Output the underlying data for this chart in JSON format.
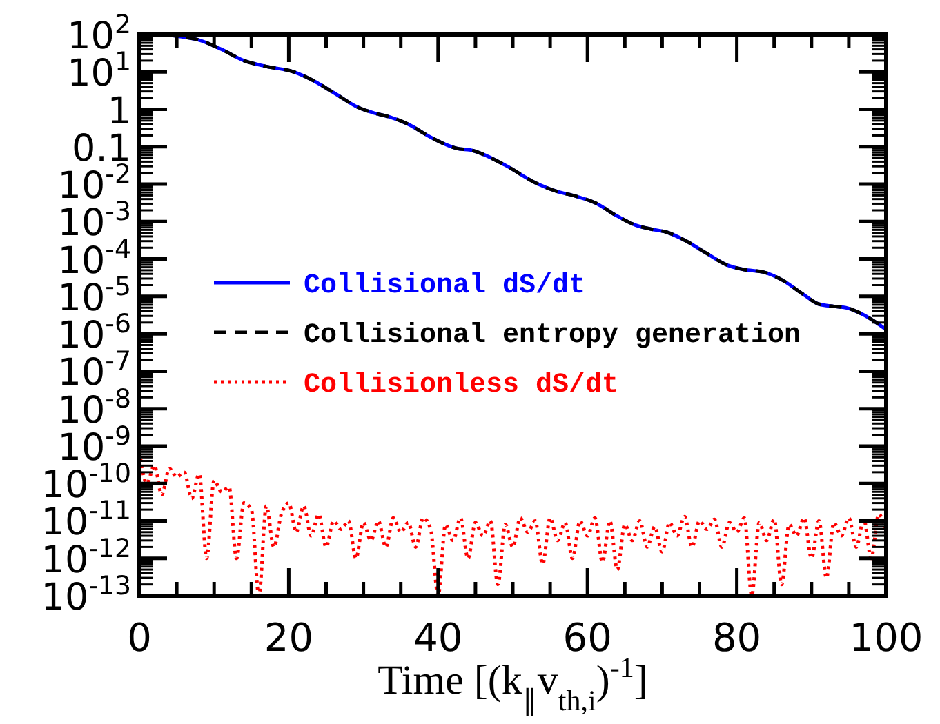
{
  "chart_data": {
    "type": "line",
    "xlabel": "Time [(k$_{∥}$v$_{th,i}$)$^{-1}$]",
    "xlim": [
      0,
      100
    ],
    "xticks": [
      0,
      {
        "value": 5,
        "label": null
      },
      {
        "value": 10,
        "label": null
      },
      {
        "value": 15,
        "label": null
      },
      20,
      {
        "value": 25,
        "label": null
      },
      {
        "value": 30,
        "label": null
      },
      {
        "value": 35,
        "label": null
      },
      40,
      {
        "value": 45,
        "label": null
      },
      {
        "value": 50,
        "label": null
      },
      {
        "value": 55,
        "label": null
      },
      60,
      {
        "value": 65,
        "label": null
      },
      {
        "value": 70,
        "label": null
      },
      {
        "value": 75,
        "label": null
      },
      80,
      {
        "value": 85,
        "label": null
      },
      {
        "value": 90,
        "label": null
      },
      {
        "value": 95,
        "label": null
      },
      100
    ],
    "ylim": [
      1e-13,
      100
    ],
    "yticks": [
      {
        "value": 100,
        "label": "10$^{2}$"
      },
      {
        "value": 10,
        "label": "10$^{1}$"
      },
      1,
      0.1,
      {
        "value": 0.01,
        "label": "10$^{-2}$"
      },
      {
        "value": 0.001,
        "label": "10$^{-3}$"
      },
      {
        "value": 0.0001,
        "label": "10$^{-4}$"
      },
      {
        "value": 1e-05,
        "label": "10$^{-5}$"
      },
      {
        "value": 1e-06,
        "label": "10$^{-6}$"
      },
      {
        "value": 1e-07,
        "label": "10$^{-7}$"
      },
      {
        "value": 1e-08,
        "label": "10$^{-8}$"
      },
      {
        "value": 1e-09,
        "label": "10$^{-9}$"
      },
      {
        "value": 1e-10,
        "label": "10$^{-10}$"
      },
      {
        "value": 1e-11,
        "label": "10$^{-11}$"
      },
      {
        "value": 1e-12,
        "label": "10$^{-12}$"
      },
      {
        "value": 1e-13,
        "label": "10$^{-13}$"
      }
    ],
    "log": "y",
    "grid": false,
    "legend": "left",
    "series": [
      {
        "name": "Collisional dS/dt",
        "color": "#0000ff",
        "line_style": "solid",
        "x": [
          3.5,
          6,
          8,
          11,
          14,
          17,
          20.7,
          23,
          26,
          29.4,
          31.5,
          33.6,
          36,
          39,
          42.9,
          44.2,
          46,
          49,
          53.4,
          56,
          58.4,
          61,
          64,
          66.4,
          68.5,
          70.6,
          73,
          76,
          78.7,
          81,
          83.5,
          86,
          89,
          90.9,
          93,
          94.6,
          97,
          100
        ],
        "values": [
          100,
          85,
          71,
          40,
          20,
          14,
          10,
          6.3,
          2.8,
          1.1,
          0.79,
          0.62,
          0.4,
          0.18,
          0.087,
          0.083,
          0.063,
          0.032,
          0.01,
          0.0063,
          0.0048,
          0.0032,
          0.0014,
          0.00081,
          0.00063,
          0.00052,
          0.00032,
          0.00014,
          6.9e-05,
          5.2e-05,
          4.5e-05,
          2.8e-05,
          1.1e-05,
          6.3e-06,
          5.4e-06,
          5e-06,
          3.2e-06,
          1.3e-06
        ]
      },
      {
        "name": "Collisional entropy generation",
        "color": "#000000",
        "line_style": "dashed",
        "x": [
          3.5,
          6,
          8,
          11,
          14,
          17,
          20.7,
          23,
          26,
          29.4,
          31.5,
          33.6,
          36,
          39,
          42.9,
          44.2,
          46,
          49,
          53.4,
          56,
          58.4,
          61,
          64,
          66.4,
          68.5,
          70.6,
          73,
          76,
          78.7,
          81,
          83.5,
          86,
          89,
          90.9,
          93,
          94.6,
          97,
          100
        ],
        "values": [
          100,
          85,
          71,
          40,
          20,
          14,
          10,
          6.3,
          2.8,
          1.1,
          0.79,
          0.62,
          0.4,
          0.18,
          0.087,
          0.083,
          0.063,
          0.032,
          0.01,
          0.0063,
          0.0048,
          0.0032,
          0.0014,
          0.00081,
          0.00063,
          0.00052,
          0.00032,
          0.00014,
          6.9e-05,
          5.2e-05,
          4.5e-05,
          2.8e-05,
          1.1e-05,
          6.3e-06,
          5.4e-06,
          5e-06,
          3.2e-06,
          1.3e-06
        ]
      },
      {
        "name": "Collisionless dS/dt",
        "color": "#ff0000",
        "line_style": "dotted",
        "x": [
          0,
          1,
          2,
          3,
          4,
          5,
          6,
          7,
          8,
          9,
          10,
          11,
          12,
          13,
          14,
          15,
          16,
          17,
          18,
          19,
          20,
          21,
          22,
          23,
          24,
          25,
          26,
          27,
          28,
          29,
          30,
          31,
          32,
          33,
          34,
          35,
          36,
          37,
          38,
          39,
          40,
          41,
          42,
          43,
          44,
          45,
          46,
          47,
          48,
          49,
          50,
          51,
          52,
          53,
          54,
          55,
          56,
          57,
          58,
          59,
          60,
          61,
          62,
          63,
          64,
          65,
          66,
          67,
          68,
          69,
          70,
          71,
          72,
          73,
          74,
          75,
          76,
          77,
          78,
          79,
          80,
          81,
          82,
          83,
          84,
          85,
          86,
          87,
          88,
          89,
          90,
          91,
          92,
          93,
          94,
          95,
          96,
          97,
          98,
          99,
          100
        ],
        "values": [
          7e-10,
          1e-10,
          3e-10,
          5e-11,
          2.5e-10,
          1.5e-10,
          2e-10,
          4e-11,
          1.8e-10,
          1e-12,
          1.2e-10,
          6e-11,
          8e-11,
          1e-12,
          3e-11,
          2e-11,
          1e-13,
          2.5e-11,
          2e-12,
          1.5e-11,
          3e-11,
          5e-12,
          2.5e-11,
          4e-12,
          1.5e-11,
          2e-12,
          1e-11,
          6e-12,
          1e-11,
          1e-12,
          9e-12,
          3e-12,
          1e-11,
          2e-12,
          1.2e-11,
          5e-12,
          9e-12,
          2e-12,
          1.2e-11,
          6e-12,
          1e-13,
          8e-12,
          3e-12,
          1.2e-11,
          1e-12,
          9e-12,
          4e-12,
          1e-11,
          2e-13,
          8e-12,
          2e-12,
          1.2e-11,
          5e-12,
          1e-11,
          7e-13,
          1.2e-11,
          3e-12,
          9e-12,
          1e-12,
          1e-11,
          4e-12,
          1.2e-11,
          8e-13,
          1e-11,
          5e-13,
          8e-12,
          3e-12,
          1e-11,
          2e-12,
          7e-12,
          1.5e-12,
          9e-12,
          4e-12,
          1.3e-11,
          2e-12,
          1e-11,
          6e-12,
          1.1e-11,
          2e-12,
          9e-12,
          5e-12,
          1.2e-11,
          1e-13,
          9e-12,
          3e-12,
          1.1e-11,
          2e-13,
          8e-12,
          4e-12,
          1.2e-11,
          1e-12,
          1e-11,
          3e-13,
          9e-12,
          4e-12,
          1.2e-11,
          2e-12,
          1.1e-11,
          1e-12,
          1.5e-11,
          5e-12
        ]
      }
    ]
  }
}
